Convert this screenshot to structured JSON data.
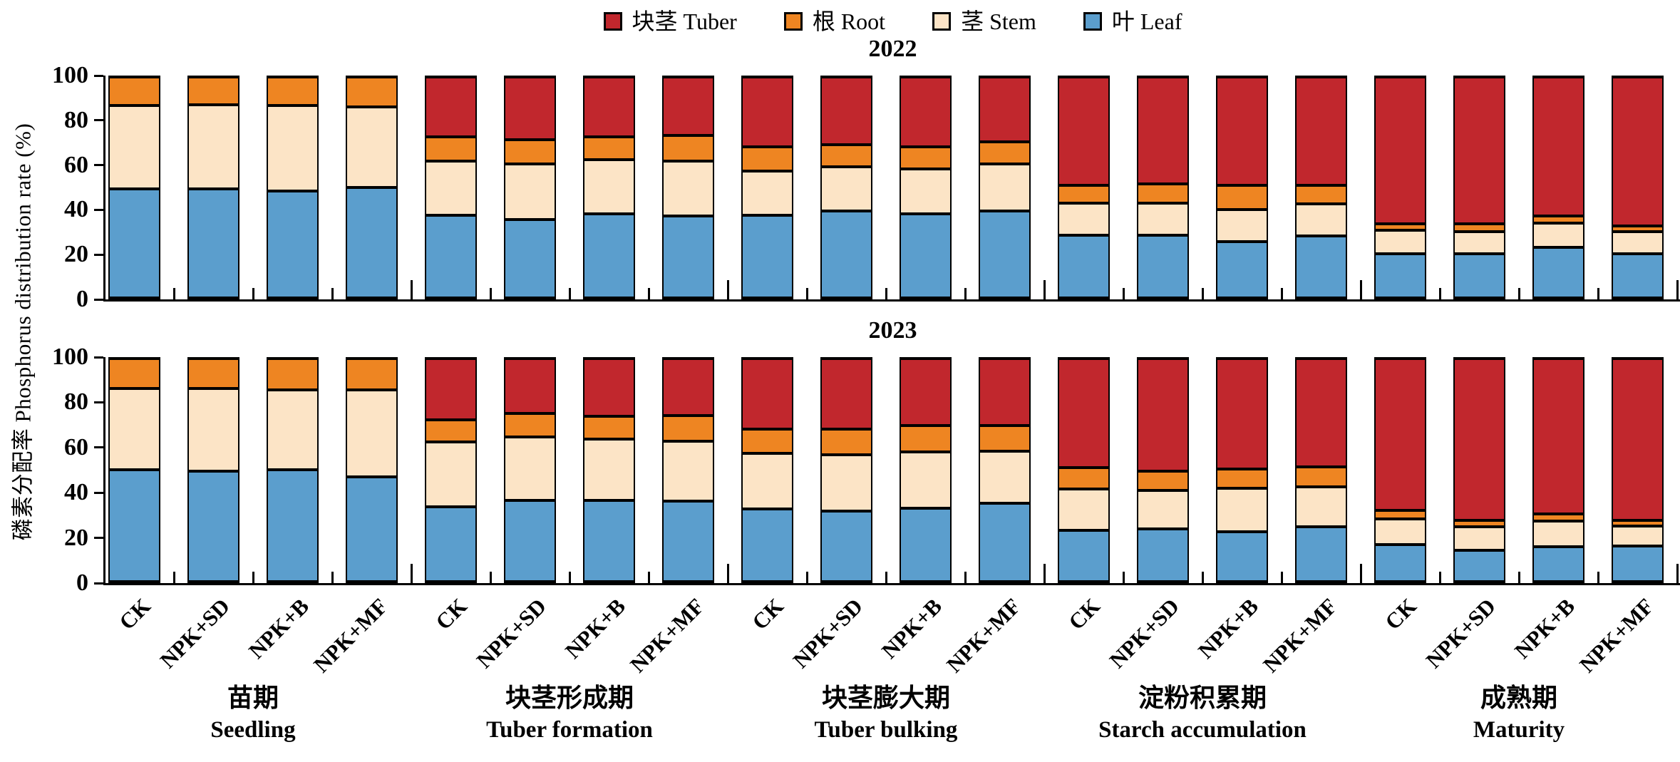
{
  "figure": {
    "background": "#ffffff"
  },
  "chart_data": {
    "type": "bar",
    "stacked": true,
    "title": "",
    "y_axis_label": "磷素分配率 Phosphorus distribution rate (%)",
    "y_ticks": [
      0,
      20,
      40,
      60,
      80,
      100
    ],
    "ylim": [
      0,
      100
    ],
    "grid": false,
    "legend_position": "top-center",
    "series": [
      {
        "key": "tuber",
        "label": "块茎 Tuber",
        "color": "#c1272d"
      },
      {
        "key": "root",
        "label": "根 Root",
        "color": "#ee8522"
      },
      {
        "key": "stem",
        "label": "茎 Stem",
        "color": "#fce4c6"
      },
      {
        "key": "leaf",
        "label": "叶 Leaf",
        "color": "#5b9ecd"
      }
    ],
    "treatments": [
      "CK",
      "NPK+SD",
      "NPK+B",
      "NPK+MF"
    ],
    "stages": [
      {
        "zh": "苗期",
        "en": "Seedling"
      },
      {
        "zh": "块茎形成期",
        "en": "Tuber formation"
      },
      {
        "zh": "块茎膨大期",
        "en": "Tuber bulking"
      },
      {
        "zh": "淀粉积累期",
        "en": "Starch accumulation"
      },
      {
        "zh": "成熟期",
        "en": "Maturity"
      }
    ],
    "panels": [
      {
        "title": "2022",
        "groups": [
          [
            {
              "leaf": 49.5,
              "stem": 37.5,
              "root": 13.0,
              "tuber": 0
            },
            {
              "leaf": 49.5,
              "stem": 38.0,
              "root": 12.5,
              "tuber": 0
            },
            {
              "leaf": 48.5,
              "stem": 38.5,
              "root": 13.0,
              "tuber": 0
            },
            {
              "leaf": 50.0,
              "stem": 36.5,
              "root": 13.5,
              "tuber": 0
            }
          ],
          [
            {
              "leaf": 37.5,
              "stem": 24.5,
              "root": 11.0,
              "tuber": 27.0
            },
            {
              "leaf": 35.5,
              "stem": 25.0,
              "root": 11.0,
              "tuber": 28.5
            },
            {
              "leaf": 38.0,
              "stem": 24.5,
              "root": 10.5,
              "tuber": 27.0
            },
            {
              "leaf": 37.0,
              "stem": 25.0,
              "root": 11.5,
              "tuber": 26.5
            }
          ],
          [
            {
              "leaf": 37.5,
              "stem": 20.0,
              "root": 11.0,
              "tuber": 31.5
            },
            {
              "leaf": 39.5,
              "stem": 20.0,
              "root": 10.0,
              "tuber": 30.5
            },
            {
              "leaf": 38.0,
              "stem": 20.5,
              "root": 10.0,
              "tuber": 31.5
            },
            {
              "leaf": 39.5,
              "stem": 21.0,
              "root": 10.0,
              "tuber": 29.5
            }
          ],
          [
            {
              "leaf": 28.5,
              "stem": 14.5,
              "root": 8.0,
              "tuber": 49.0
            },
            {
              "leaf": 28.5,
              "stem": 14.5,
              "root": 8.5,
              "tuber": 48.5
            },
            {
              "leaf": 25.5,
              "stem": 14.5,
              "root": 11.0,
              "tuber": 49.0
            },
            {
              "leaf": 28.0,
              "stem": 14.5,
              "root": 8.5,
              "tuber": 49.0
            }
          ],
          [
            {
              "leaf": 20.0,
              "stem": 10.5,
              "root": 3.0,
              "tuber": 66.5
            },
            {
              "leaf": 20.0,
              "stem": 10.0,
              "root": 3.5,
              "tuber": 66.5
            },
            {
              "leaf": 23.0,
              "stem": 11.0,
              "root": 3.0,
              "tuber": 63.0
            },
            {
              "leaf": 20.0,
              "stem": 10.0,
              "root": 2.5,
              "tuber": 67.5
            }
          ]
        ]
      },
      {
        "title": "2023",
        "groups": [
          [
            {
              "leaf": 50.0,
              "stem": 36.5,
              "root": 13.5,
              "tuber": 0
            },
            {
              "leaf": 49.5,
              "stem": 37.0,
              "root": 13.5,
              "tuber": 0
            },
            {
              "leaf": 50.0,
              "stem": 36.0,
              "root": 14.0,
              "tuber": 0
            },
            {
              "leaf": 47.0,
              "stem": 39.0,
              "root": 14.0,
              "tuber": 0
            }
          ],
          [
            {
              "leaf": 33.5,
              "stem": 29.0,
              "root": 10.0,
              "tuber": 27.5
            },
            {
              "leaf": 36.5,
              "stem": 28.5,
              "root": 10.5,
              "tuber": 24.5
            },
            {
              "leaf": 36.5,
              "stem": 27.5,
              "root": 10.0,
              "tuber": 26.0
            },
            {
              "leaf": 36.0,
              "stem": 27.0,
              "root": 11.5,
              "tuber": 25.5
            }
          ],
          [
            {
              "leaf": 32.5,
              "stem": 25.0,
              "root": 11.0,
              "tuber": 31.5
            },
            {
              "leaf": 31.5,
              "stem": 25.5,
              "root": 11.5,
              "tuber": 31.5
            },
            {
              "leaf": 33.0,
              "stem": 25.0,
              "root": 12.0,
              "tuber": 30.0
            },
            {
              "leaf": 35.0,
              "stem": 23.5,
              "root": 11.5,
              "tuber": 30.0
            }
          ],
          [
            {
              "leaf": 23.0,
              "stem": 18.5,
              "root": 9.5,
              "tuber": 49.0
            },
            {
              "leaf": 23.5,
              "stem": 17.5,
              "root": 8.5,
              "tuber": 50.5
            },
            {
              "leaf": 22.5,
              "stem": 19.5,
              "root": 8.5,
              "tuber": 49.5
            },
            {
              "leaf": 24.5,
              "stem": 18.0,
              "root": 9.0,
              "tuber": 48.5
            }
          ],
          [
            {
              "leaf": 16.5,
              "stem": 11.5,
              "root": 4.0,
              "tuber": 68.0
            },
            {
              "leaf": 14.0,
              "stem": 10.5,
              "root": 3.0,
              "tuber": 72.5
            },
            {
              "leaf": 15.5,
              "stem": 11.5,
              "root": 3.5,
              "tuber": 69.5
            },
            {
              "leaf": 16.0,
              "stem": 9.0,
              "root": 2.5,
              "tuber": 72.5
            }
          ]
        ]
      }
    ]
  }
}
